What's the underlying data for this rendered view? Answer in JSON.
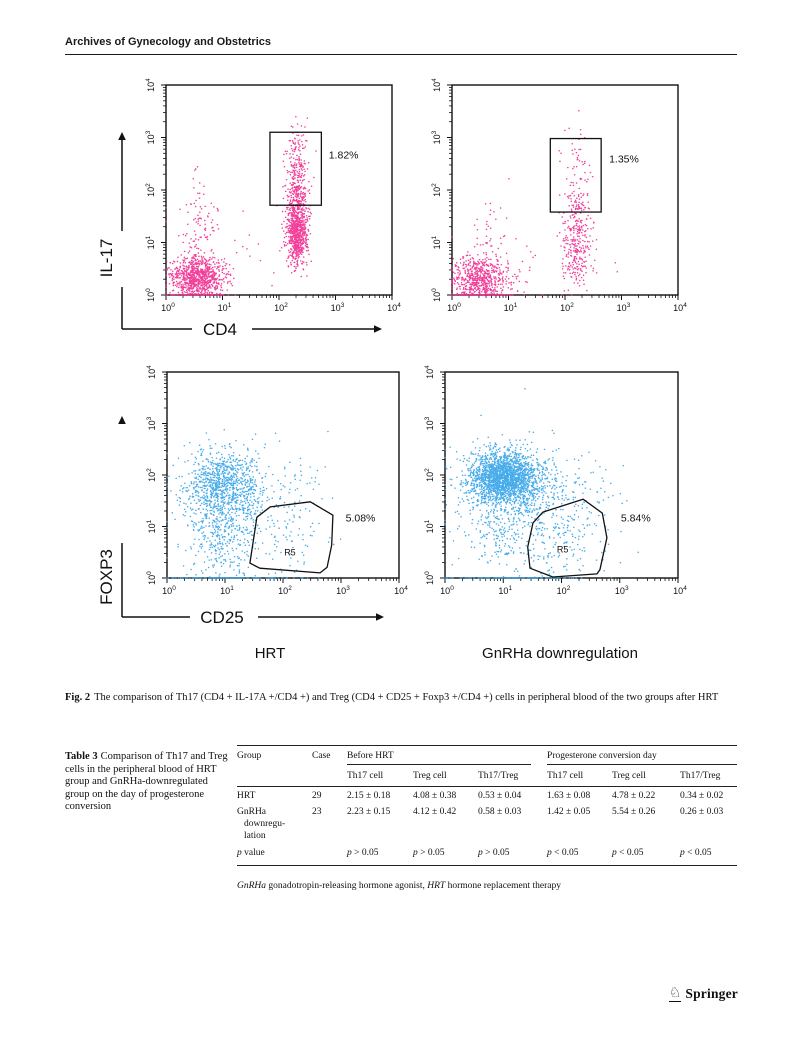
{
  "page": {
    "journal_header": "Archives of Gynecology and Obstetrics",
    "publisher": "Springer"
  },
  "figure": {
    "caption_label": "Fig. 2",
    "caption_text": "The comparison of Th17 (CD4 + IL-17A +/CD4 +) and Treg (CD4 + CD25 + Foxp3 +/CD4 +) cells in peripheral blood of the two groups after HRT",
    "group_left": "HRT",
    "group_right": "GnRHa downregulation"
  },
  "chart_data": [
    {
      "id": "hrt-th17",
      "type": "scatter",
      "xlabel": "CD4",
      "ylabel": "IL-17",
      "x_axis": {
        "scale": "log",
        "min": 1,
        "max": 10000
      },
      "y_axis": {
        "scale": "log",
        "min": 1,
        "max": 10000
      },
      "tick_exponents": [
        0,
        1,
        2,
        3,
        4
      ],
      "point_color": "#F0268C",
      "gate": {
        "shape": "rect",
        "x": [
          1.84,
          2.75
        ],
        "y": [
          1.71,
          3.1
        ],
        "percent": "1.82%",
        "percent_pos": [
          2.88,
          2.6
        ]
      },
      "clusters": [
        [
          0.55,
          0.33,
          0.23,
          0.2,
          900
        ],
        [
          0.62,
          1.2,
          0.15,
          0.5,
          110
        ],
        [
          2.32,
          1.15,
          0.09,
          0.28,
          650
        ],
        [
          2.32,
          1.85,
          0.1,
          0.3,
          300
        ],
        [
          2.33,
          2.6,
          0.11,
          0.35,
          120
        ],
        [
          0.55,
          0.0,
          0.3,
          0.0,
          70
        ],
        [
          1.3,
          0.7,
          0.7,
          0.6,
          30
        ]
      ]
    },
    {
      "id": "gnrha-th17",
      "type": "scatter",
      "xlabel": null,
      "ylabel": null,
      "x_axis": {
        "scale": "log",
        "min": 1,
        "max": 10000
      },
      "y_axis": {
        "scale": "log",
        "min": 1,
        "max": 10000
      },
      "tick_exponents": [
        0,
        1,
        2,
        3,
        4
      ],
      "point_color": "#F0268C",
      "gate": {
        "shape": "rect",
        "x": [
          1.74,
          2.64
        ],
        "y": [
          1.58,
          2.98
        ],
        "percent": "1.35%",
        "percent_pos": [
          2.78,
          2.52
        ]
      },
      "clusters": [
        [
          0.5,
          0.3,
          0.25,
          0.22,
          650
        ],
        [
          0.6,
          1.1,
          0.18,
          0.45,
          35
        ],
        [
          2.2,
          0.9,
          0.13,
          0.38,
          260
        ],
        [
          2.2,
          1.7,
          0.12,
          0.35,
          80
        ],
        [
          2.2,
          2.5,
          0.12,
          0.4,
          45
        ],
        [
          0.5,
          0.0,
          0.3,
          0.0,
          90
        ],
        [
          1.4,
          0.5,
          0.7,
          0.5,
          20
        ]
      ]
    },
    {
      "id": "hrt-treg",
      "type": "scatter",
      "xlabel": "CD25",
      "ylabel": "FOXP3",
      "x_axis": {
        "scale": "log",
        "min": 1,
        "max": 10000
      },
      "y_axis": {
        "scale": "log",
        "min": 1,
        "max": 10000
      },
      "tick_exponents": [
        0,
        1,
        2,
        3,
        4
      ],
      "point_color": "#2FA0E8",
      "gate": {
        "shape": "polygon",
        "points": [
          [
            1.55,
            1.18
          ],
          [
            1.78,
            1.38
          ],
          [
            2.47,
            1.48
          ],
          [
            2.86,
            1.22
          ],
          [
            2.84,
            0.64
          ],
          [
            2.76,
            0.21
          ],
          [
            2.64,
            0.1
          ],
          [
            1.6,
            0.19
          ],
          [
            1.43,
            0.29
          ]
        ],
        "label": "R5",
        "label_pos": [
          2.12,
          0.44
        ],
        "percent": "5.08%",
        "percent_pos": [
          3.08,
          1.1
        ]
      },
      "clusters": [
        [
          0.95,
          1.8,
          0.3,
          0.35,
          850
        ],
        [
          1.1,
          1.4,
          0.45,
          0.5,
          300
        ],
        [
          0.9,
          0.6,
          0.3,
          0.4,
          200
        ],
        [
          1.0,
          0.0,
          0.55,
          0.0,
          130
        ],
        [
          2.0,
          0.8,
          0.4,
          0.45,
          90
        ],
        [
          2.2,
          1.9,
          0.35,
          0.4,
          50
        ]
      ]
    },
    {
      "id": "gnrha-treg",
      "type": "scatter",
      "xlabel": null,
      "ylabel": null,
      "x_axis": {
        "scale": "log",
        "min": 1,
        "max": 10000
      },
      "y_axis": {
        "scale": "log",
        "min": 1,
        "max": 10000
      },
      "tick_exponents": [
        0,
        1,
        2,
        3,
        4
      ],
      "point_color": "#2FA0E8",
      "gate": {
        "shape": "polygon",
        "points": [
          [
            1.51,
            1.07
          ],
          [
            1.68,
            1.28
          ],
          [
            2.37,
            1.53
          ],
          [
            2.7,
            1.26
          ],
          [
            2.78,
            0.78
          ],
          [
            2.66,
            0.16
          ],
          [
            2.61,
            0.08
          ],
          [
            1.85,
            0.02
          ],
          [
            1.46,
            0.19
          ],
          [
            1.42,
            0.6
          ]
        ],
        "label": "R5",
        "label_pos": [
          2.02,
          0.5
        ],
        "percent": "5.84%",
        "percent_pos": [
          3.02,
          1.1
        ]
      },
      "clusters": [
        [
          1.0,
          1.95,
          0.28,
          0.25,
          1700
        ],
        [
          1.2,
          1.8,
          0.5,
          0.4,
          600
        ],
        [
          1.1,
          1.0,
          0.45,
          0.45,
          260
        ],
        [
          1.0,
          0.0,
          0.6,
          0.0,
          140
        ],
        [
          2.0,
          0.8,
          0.45,
          0.5,
          160
        ],
        [
          2.3,
          1.6,
          0.35,
          0.35,
          60
        ]
      ]
    }
  ],
  "table3": {
    "caption_label": "Table 3",
    "caption_text": "Comparison of Th17 and Treg cells in the peripheral blood of HRT group and GnRHa-downregulated group on the day of progesterone conversion",
    "headers": {
      "group": "Group",
      "case": "Case",
      "before": "Before HRT",
      "conversion": "Progesterone conversion day"
    },
    "sub_headers": [
      "Th17 cell",
      "Treg cell",
      "Th17/Treg",
      "Th17 cell",
      "Treg cell",
      "Th17/Treg"
    ],
    "rows": [
      {
        "group": "HRT",
        "case": "29",
        "values": [
          "2.15 ± 0.18",
          "4.08 ± 0.38",
          "0.53 ± 0.04",
          "1.63 ± 0.08",
          "4.78 ± 0.22",
          "0.34 ± 0.02"
        ]
      },
      {
        "group": "GnRHa downregulation",
        "group_lines": [
          "GnRHa",
          "downregu-",
          "lation"
        ],
        "case": "23",
        "values": [
          "2.23 ± 0.15",
          "4.12 ± 0.42",
          "0.58 ± 0.03",
          "1.42 ± 0.05",
          "5.54 ± 0.26",
          "0.26 ± 0.03"
        ]
      },
      {
        "group": "p value",
        "italic_p": true,
        "case": "",
        "values": [
          "p > 0.05",
          "p > 0.05",
          "p > 0.05",
          "p < 0.05",
          "p < 0.05",
          "p < 0.05"
        ]
      }
    ],
    "footnote_parts": [
      [
        "GnRHa",
        true
      ],
      [
        " gonadotropin-releasing hormone agonist, ",
        false
      ],
      [
        "HRT",
        true
      ],
      [
        " hormone replacement therapy",
        false
      ]
    ]
  }
}
